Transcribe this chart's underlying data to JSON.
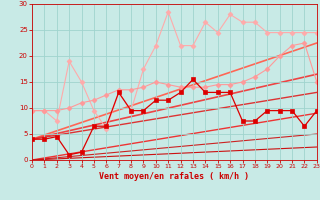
{
  "xlabel": "Vent moyen/en rafales ( km/h )",
  "xlim": [
    0,
    23
  ],
  "ylim": [
    0,
    30
  ],
  "xticks": [
    0,
    1,
    2,
    3,
    4,
    5,
    6,
    7,
    8,
    9,
    10,
    11,
    12,
    13,
    14,
    15,
    16,
    17,
    18,
    19,
    20,
    21,
    22,
    23
  ],
  "yticks": [
    0,
    5,
    10,
    15,
    20,
    25,
    30
  ],
  "bg_color": "#c8eae6",
  "grid_color": "#a0d4ce",
  "xlabel_color": "#cc0000",
  "tick_color": "#cc0000",
  "series": [
    {
      "x": [
        0,
        1,
        2,
        3,
        4,
        5,
        6,
        7,
        8,
        9,
        10,
        11,
        12,
        13,
        14,
        15,
        16,
        17,
        18,
        19,
        20,
        21,
        22,
        23
      ],
      "y": [
        9.5,
        9.5,
        7.5,
        19.0,
        15.0,
        9.5,
        6.0,
        13.0,
        9.5,
        17.5,
        22.0,
        28.5,
        22.0,
        22.0,
        26.5,
        24.5,
        28.0,
        26.5,
        26.5,
        24.5,
        24.5,
        24.5,
        24.5,
        24.5
      ],
      "color": "#ffaaaa",
      "marker": "D",
      "markersize": 2.5,
      "linewidth": 0.8,
      "zorder": 2
    },
    {
      "x": [
        0,
        1,
        2,
        3,
        4,
        5,
        6,
        7,
        8,
        9,
        10,
        11,
        12,
        13,
        14,
        15,
        16,
        17,
        18,
        19,
        20,
        21,
        22,
        23
      ],
      "y": [
        9.5,
        9.5,
        9.5,
        10.0,
        11.0,
        11.5,
        12.5,
        13.5,
        13.5,
        14.0,
        15.0,
        14.5,
        14.0,
        14.0,
        14.0,
        14.5,
        14.5,
        15.0,
        16.0,
        17.5,
        20.0,
        22.0,
        22.5,
        15.0
      ],
      "color": "#ff9999",
      "marker": "D",
      "markersize": 2.5,
      "linewidth": 0.8,
      "zorder": 2
    },
    {
      "x": [
        0,
        1,
        2,
        3,
        4,
        5,
        6,
        7,
        8,
        9,
        10,
        11,
        12,
        13,
        14,
        15,
        16,
        17,
        18,
        19,
        20,
        21,
        22,
        23
      ],
      "y": [
        4.0,
        4.0,
        4.5,
        1.0,
        1.5,
        6.5,
        6.5,
        13.0,
        9.5,
        9.5,
        11.5,
        11.5,
        13.0,
        15.5,
        13.0,
        13.0,
        13.0,
        7.5,
        7.5,
        9.5,
        9.5,
        9.5,
        6.5,
        9.5
      ],
      "color": "#dd0000",
      "marker": "s",
      "markersize": 2.5,
      "linewidth": 0.9,
      "zorder": 3
    },
    {
      "x": [
        0,
        23
      ],
      "y": [
        4.0,
        22.5
      ],
      "color": "#ff6655",
      "marker": null,
      "linewidth": 1.2,
      "zorder": 1
    },
    {
      "x": [
        0,
        23
      ],
      "y": [
        4.0,
        16.5
      ],
      "color": "#ee4444",
      "marker": null,
      "linewidth": 1.2,
      "zorder": 1
    },
    {
      "x": [
        0,
        23
      ],
      "y": [
        4.0,
        13.0
      ],
      "color": "#dd3333",
      "marker": null,
      "linewidth": 1.0,
      "zorder": 1
    },
    {
      "x": [
        0,
        23
      ],
      "y": [
        0.0,
        9.0
      ],
      "color": "#ee3333",
      "marker": null,
      "linewidth": 1.0,
      "zorder": 1
    },
    {
      "x": [
        0,
        23
      ],
      "y": [
        0.0,
        5.0
      ],
      "color": "#cc2222",
      "marker": null,
      "linewidth": 0.8,
      "zorder": 1
    },
    {
      "x": [
        0,
        23
      ],
      "y": [
        0.0,
        2.5
      ],
      "color": "#cc1111",
      "marker": null,
      "linewidth": 0.8,
      "zorder": 1
    }
  ]
}
